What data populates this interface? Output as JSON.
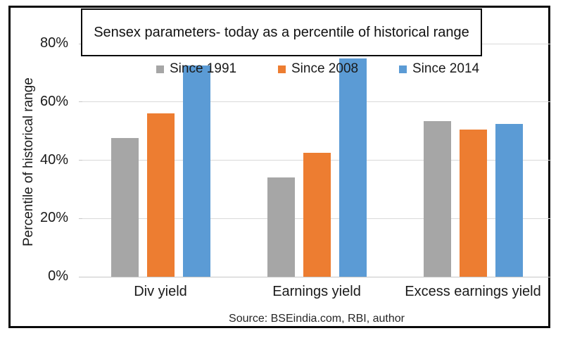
{
  "chart_data": {
    "type": "bar",
    "title": "Sensex parameters- today as a percentile of historical range",
    "categories": [
      "Div yield",
      "Earnings yield",
      "Excess earnings yield"
    ],
    "series": [
      {
        "name": "Since 1991",
        "color": "#a6a6a6",
        "values": [
          47.5,
          34,
          53.5
        ]
      },
      {
        "name": "Since 2008",
        "color": "#ed7d31",
        "values": [
          56,
          42.5,
          50.5
        ]
      },
      {
        "name": "Since 2014",
        "color": "#5b9bd5",
        "values": [
          72.5,
          75,
          52.5
        ]
      }
    ],
    "xlabel": "",
    "ylabel": "Percentile of historical range",
    "ylim": [
      0,
      80
    ],
    "ytick_step": 20,
    "ytick_labels": [
      "0%",
      "20%",
      "40%",
      "60%",
      "80%"
    ],
    "grid": true,
    "legend_position": "top-inside"
  },
  "source_note": "Source: BSEindia.com, RBI, author",
  "colors": {
    "gridline": "#d9d9d9",
    "baseline": "#c6c6c6",
    "frame_border": "#0a0a0a",
    "text": "#1a1a1a"
  }
}
